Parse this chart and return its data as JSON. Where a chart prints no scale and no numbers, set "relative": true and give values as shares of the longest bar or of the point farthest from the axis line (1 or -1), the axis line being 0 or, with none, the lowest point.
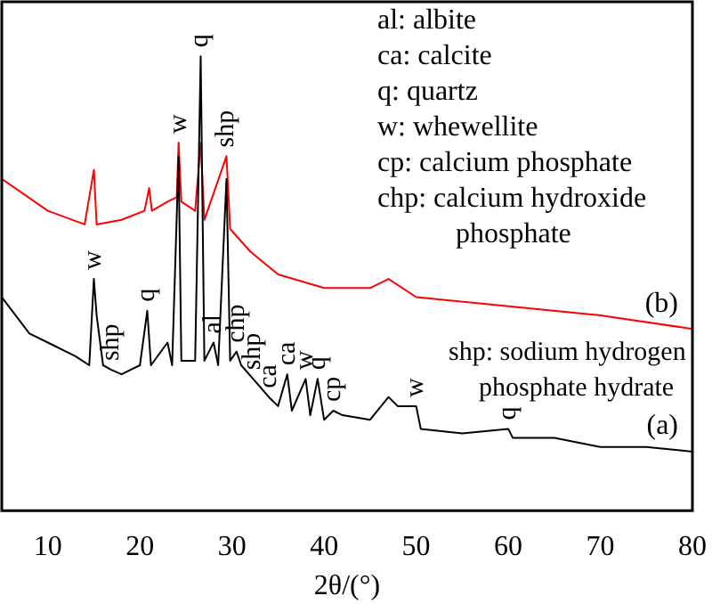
{
  "chart_data": {
    "type": "line",
    "xlabel": "2θ/(°)",
    "relative": true,
    "xlim": [
      5,
      80
    ],
    "xticks": [
      10,
      20,
      30,
      40,
      50,
      60,
      70,
      80
    ],
    "grid": false,
    "legend": false,
    "marker": "none",
    "line_style": "solid",
    "series": [
      {
        "name": "(a)",
        "color": "#000000",
        "x": [
          5,
          8,
          10,
          13,
          14.5,
          15,
          15.3,
          16,
          16.9,
          18,
          20,
          20.8,
          21.2,
          23,
          23.5,
          24.2,
          24.5,
          26,
          26.6,
          27,
          28,
          28.5,
          29.4,
          29.8,
          30.5,
          31,
          32.3,
          34,
          35,
          36,
          36.5,
          38,
          38.5,
          39.3,
          40,
          41,
          42,
          45,
          47,
          48,
          50,
          50.5,
          55,
          60,
          60.5,
          65,
          70,
          75,
          80
        ],
        "values": [
          0.47,
          0.39,
          0.37,
          0.34,
          0.32,
          0.51,
          0.43,
          0.32,
          0.31,
          0.3,
          0.32,
          0.44,
          0.32,
          0.37,
          0.32,
          0.78,
          0.33,
          0.33,
          1,
          0.33,
          0.37,
          0.32,
          0.73,
          0.33,
          0.35,
          0.32,
          0.29,
          0.25,
          0.23,
          0.3,
          0.22,
          0.29,
          0.21,
          0.29,
          0.2,
          0.22,
          0.21,
          0.2,
          0.25,
          0.23,
          0.23,
          0.18,
          0.17,
          0.18,
          0.16,
          0.16,
          0.14,
          0.14,
          0.13
        ]
      },
      {
        "name": "(b)",
        "color": "#ff0000",
        "x": [
          5,
          10,
          14,
          15,
          15.3,
          18,
          20.5,
          21,
          21.3,
          23,
          24,
          24.2,
          24.5,
          26,
          26.6,
          27,
          29.4,
          29.8,
          32,
          35,
          40,
          45,
          47,
          50,
          60,
          70,
          80
        ],
        "values": [
          0.73,
          0.66,
          0.63,
          0.75,
          0.63,
          0.64,
          0.66,
          0.71,
          0.66,
          0.68,
          0.69,
          0.81,
          0.68,
          0.66,
          0.81,
          0.64,
          0.78,
          0.62,
          0.57,
          0.52,
          0.49,
          0.49,
          0.51,
          0.47,
          0.45,
          0.43,
          0.4
        ]
      }
    ],
    "annotations": [
      "al: albite",
      "ca: calcite",
      "q: quartz",
      "w: whewellite",
      "cp: calcium phosphate",
      "chp: calcium hydroxide phosphate",
      "shp: sodium hydrogen phosphate hydrate",
      {
        "text": "w",
        "x": 15,
        "y": 0.51
      },
      {
        "text": "shp",
        "x": 16.9,
        "y": 0.31
      },
      {
        "text": "q",
        "x": 20.8,
        "y": 0.44
      },
      {
        "text": "w",
        "x": 24.2,
        "y": 0.81
      },
      {
        "text": "q",
        "x": 26.6,
        "y": 1
      },
      {
        "text": "shp",
        "x": 29.4,
        "y": 0.78
      },
      {
        "text": "al",
        "x": 28,
        "y": 0.37
      },
      {
        "text": "chp",
        "x": 30.5,
        "y": 0.35
      },
      {
        "text": "shp",
        "x": 32.3,
        "y": 0.29
      },
      {
        "text": "ca",
        "x": 34,
        "y": 0.25
      },
      {
        "text": "ca",
        "x": 36,
        "y": 0.3
      },
      {
        "text": "w",
        "x": 38,
        "y": 0.29
      },
      {
        "text": "q",
        "x": 39.3,
        "y": 0.29
      },
      {
        "text": "cp",
        "x": 41,
        "y": 0.22
      },
      {
        "text": "w",
        "x": 50,
        "y": 0.23
      },
      {
        "text": "q",
        "x": 60,
        "y": 0.18
      }
    ]
  }
}
